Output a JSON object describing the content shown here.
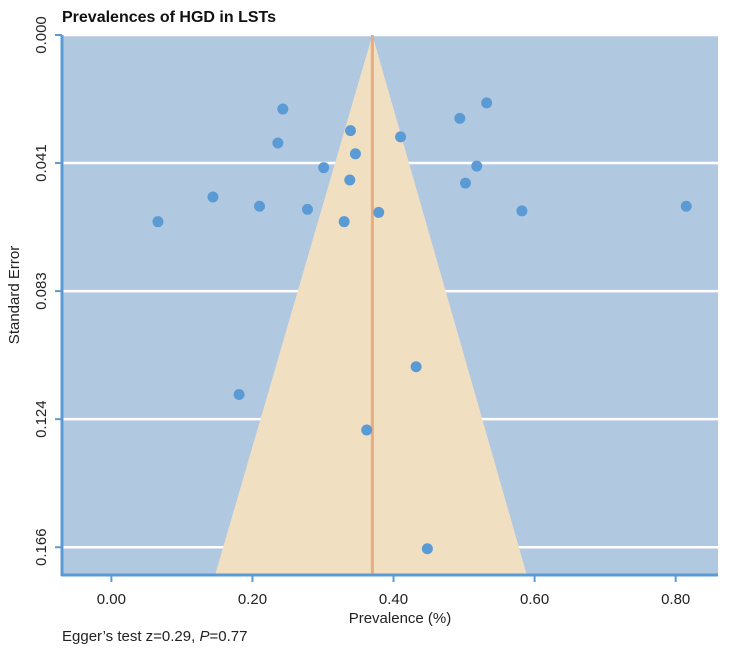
{
  "chart_data": {
    "type": "scatter",
    "subtype": "funnel-plot",
    "title": "Prevalences of HGD in LSTs",
    "xlabel": "Prevalence (%)",
    "ylabel": "Standard Error",
    "xlim": [
      -0.07,
      0.86
    ],
    "ylim": [
      0.0,
      0.175
    ],
    "y_reversed": true,
    "x_ticks": [
      "0.00",
      "0.20",
      "0.40",
      "0.60",
      "0.80"
    ],
    "x_tick_values": [
      0.0,
      0.2,
      0.4,
      0.6,
      0.8
    ],
    "y_ticks": [
      "0.000",
      "0.041",
      "0.083",
      "0.124",
      "0.166"
    ],
    "y_tick_values": [
      0.0,
      0.0415,
      0.083,
      0.1245,
      0.166
    ],
    "pooled_estimate": 0.37,
    "funnel_base_se": 0.175,
    "funnel_base_x": [
      0.147,
      0.589
    ],
    "grid": "horizontal",
    "colors": {
      "background": "#b1c8e1",
      "funnel": "#f1dfc2",
      "pooled_line": "#e8ac81",
      "points": "#5b9bd5",
      "axis": "#5b9bd5",
      "grid": "#ffffff"
    },
    "points": [
      {
        "x": 0.066,
        "y": 0.0605
      },
      {
        "x": 0.144,
        "y": 0.0525
      },
      {
        "x": 0.181,
        "y": 0.1165
      },
      {
        "x": 0.21,
        "y": 0.0555
      },
      {
        "x": 0.236,
        "y": 0.035
      },
      {
        "x": 0.243,
        "y": 0.024
      },
      {
        "x": 0.278,
        "y": 0.0565
      },
      {
        "x": 0.301,
        "y": 0.043
      },
      {
        "x": 0.33,
        "y": 0.0605
      },
      {
        "x": 0.338,
        "y": 0.047
      },
      {
        "x": 0.339,
        "y": 0.031
      },
      {
        "x": 0.346,
        "y": 0.0385
      },
      {
        "x": 0.362,
        "y": 0.128
      },
      {
        "x": 0.379,
        "y": 0.0575
      },
      {
        "x": 0.41,
        "y": 0.033
      },
      {
        "x": 0.432,
        "y": 0.1075
      },
      {
        "x": 0.448,
        "y": 0.1665
      },
      {
        "x": 0.494,
        "y": 0.027
      },
      {
        "x": 0.502,
        "y": 0.048
      },
      {
        "x": 0.518,
        "y": 0.0425
      },
      {
        "x": 0.532,
        "y": 0.022
      },
      {
        "x": 0.582,
        "y": 0.057
      },
      {
        "x": 0.815,
        "y": 0.0555
      }
    ],
    "annotation": {
      "prefix": "Egger’s test z=0.29, ",
      "p_symbol": "P",
      "suffix": "=0.77"
    }
  }
}
